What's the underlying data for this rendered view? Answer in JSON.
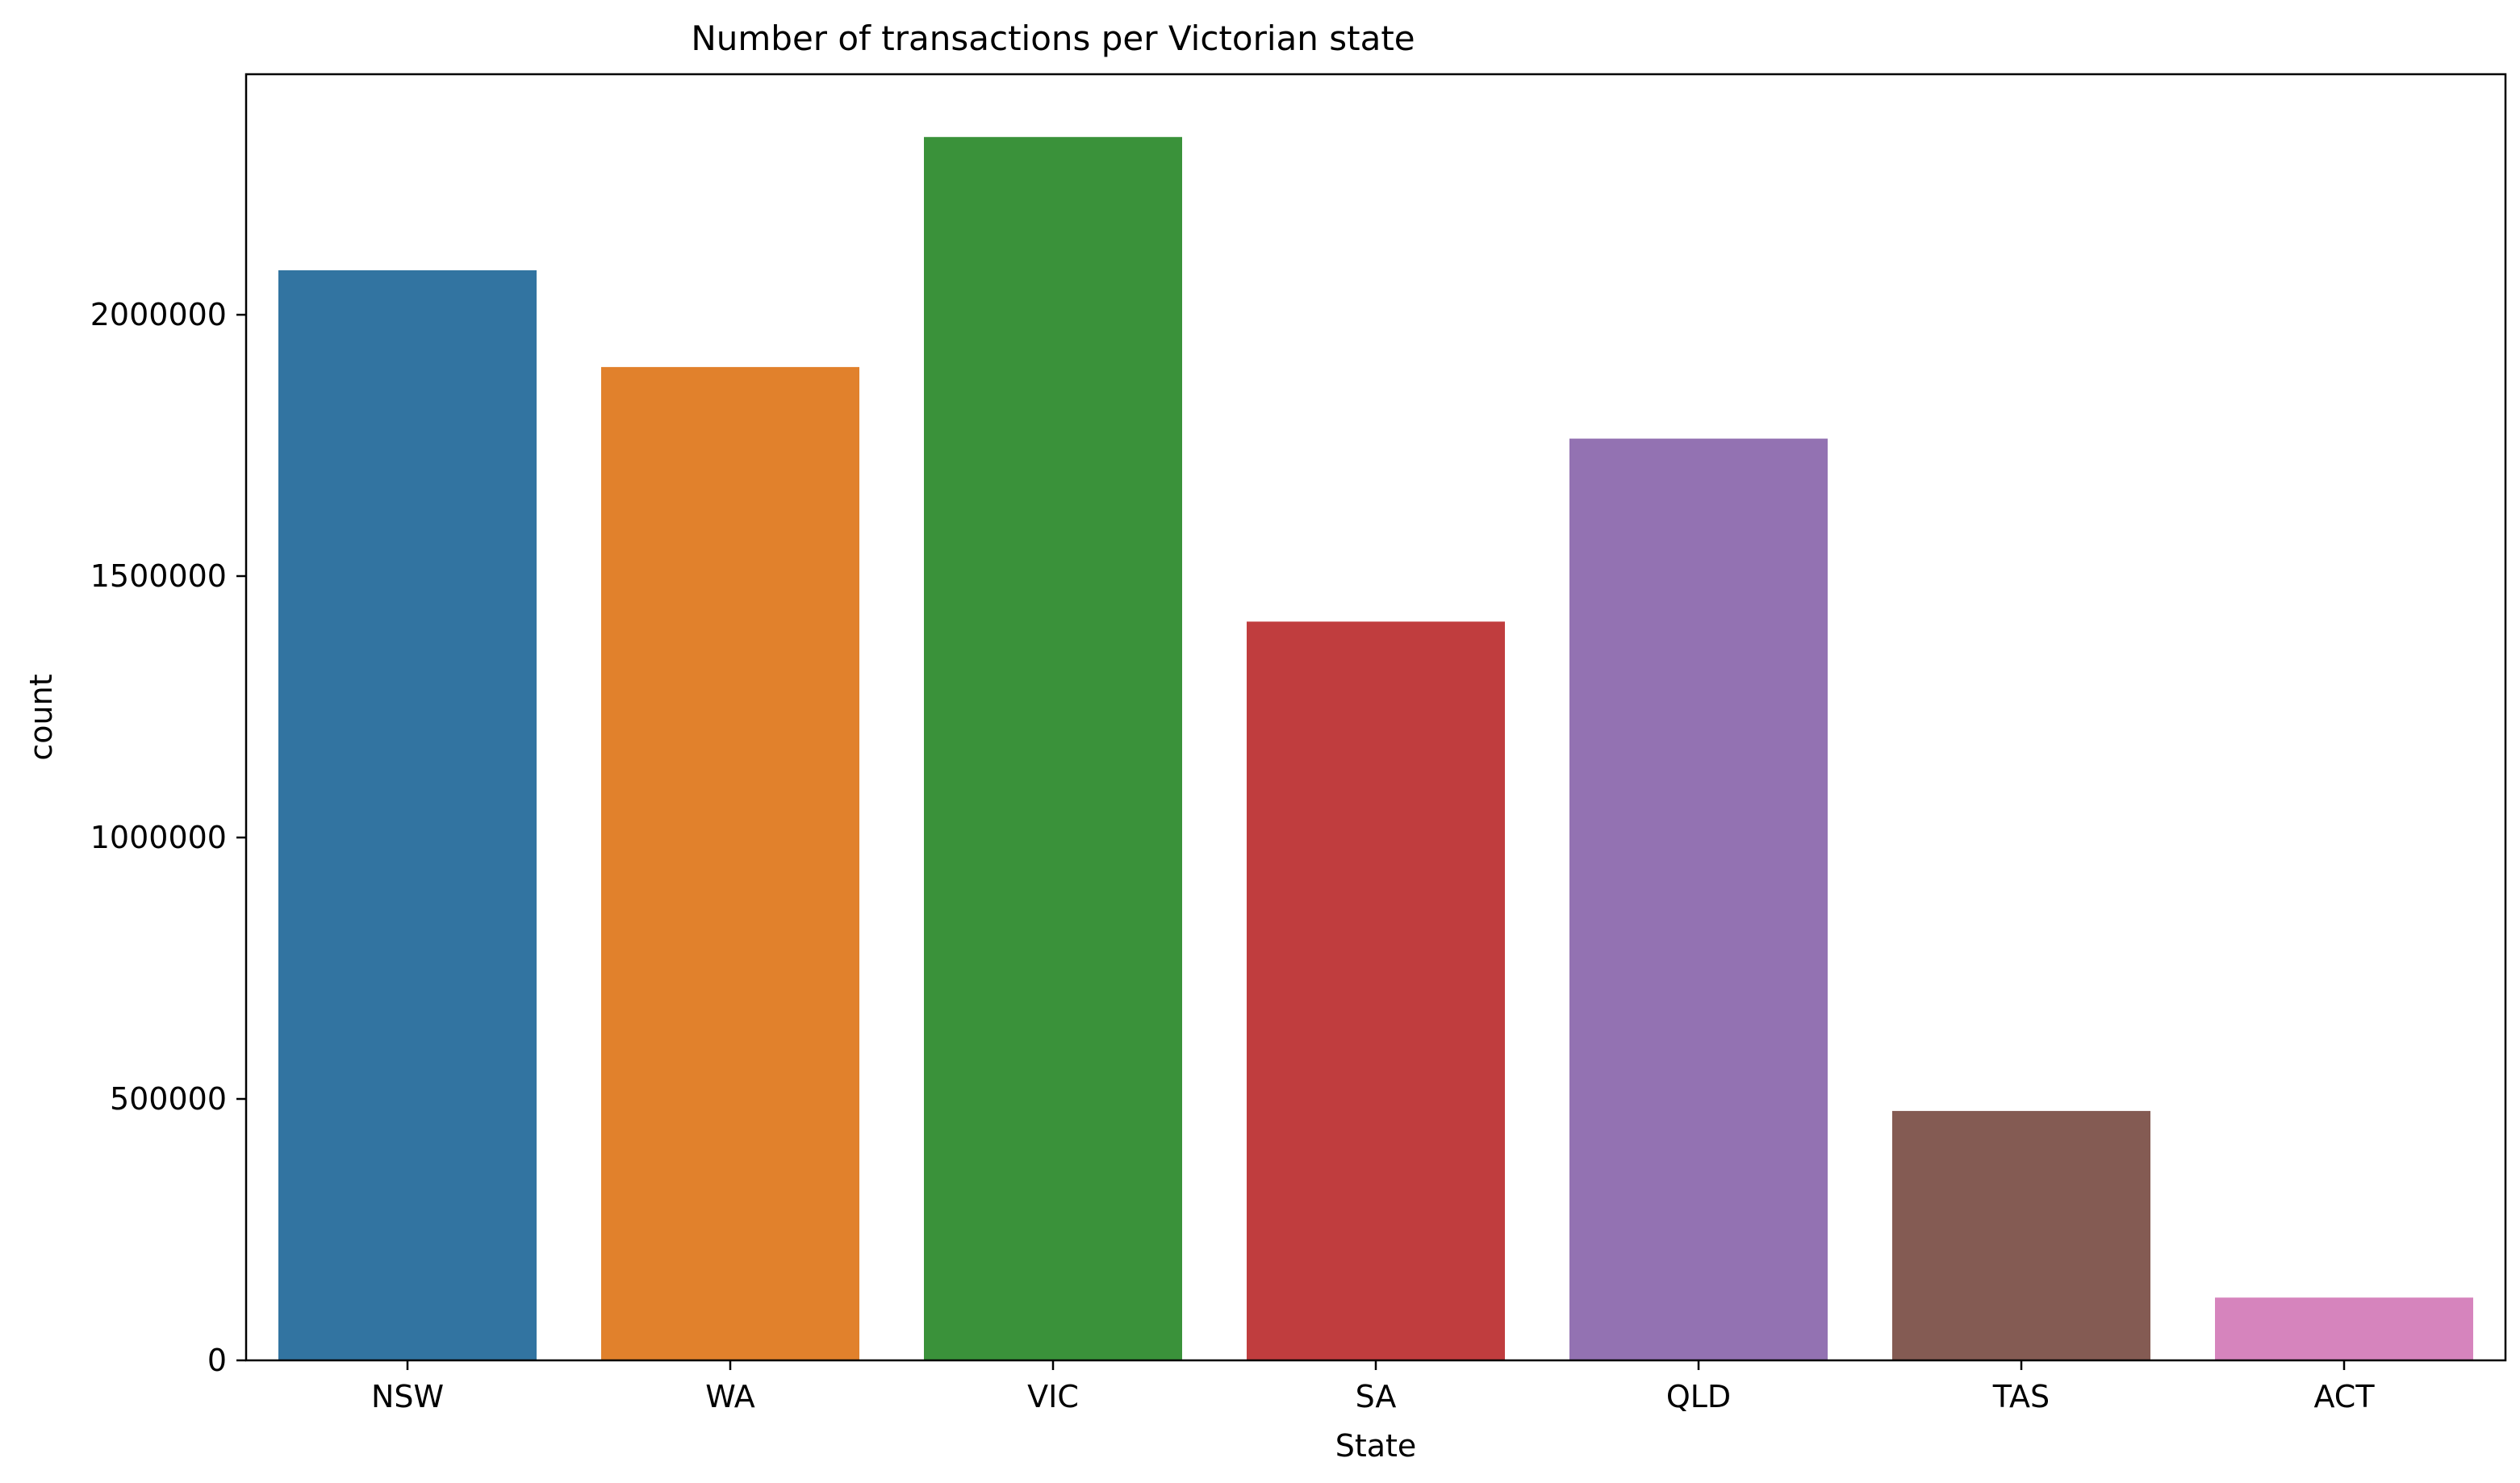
{
  "chart_data": {
    "type": "bar",
    "title": "Number of transactions per Victorian state",
    "xlabel": "State",
    "ylabel": "count",
    "categories": [
      "NSW",
      "WA",
      "VIC",
      "SA",
      "QLD",
      "TAS",
      "ACT"
    ],
    "values": [
      2085000,
      1900000,
      2340000,
      1413000,
      1763000,
      477000,
      120000
    ],
    "colors": [
      "#3274a1",
      "#e1812c",
      "#3a923a",
      "#c03d3e",
      "#9372b2",
      "#845b53",
      "#d684bd"
    ],
    "yticks": [
      0,
      500000,
      1000000,
      1500000,
      2000000
    ],
    "ytick_labels": [
      "0",
      "500000",
      "1000000",
      "1500000",
      "2000000"
    ],
    "ylim": [
      0,
      2460000
    ],
    "grid": false,
    "legend": "none"
  }
}
